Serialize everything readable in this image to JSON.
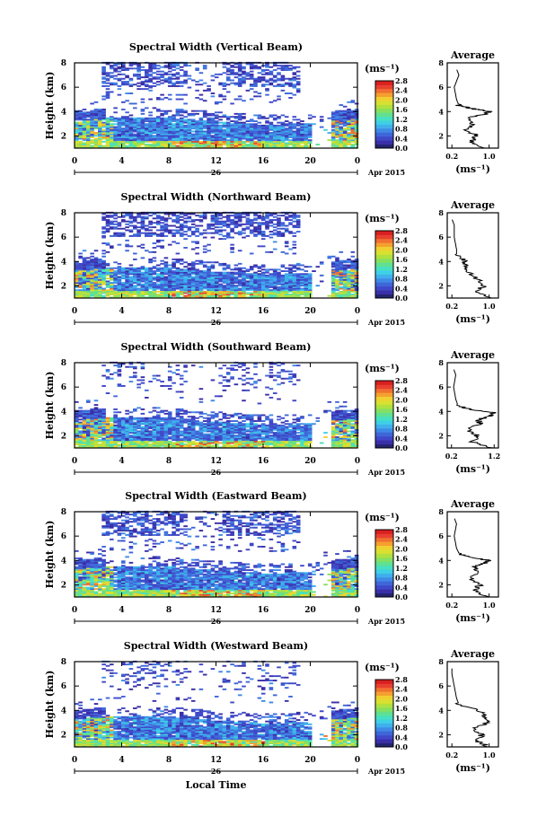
{
  "figure": {
    "x_axis_label": "Local Time",
    "date_label": "Apr 2015",
    "day_label": "26",
    "colorbar_units": "(ms⁻¹)",
    "average_title": "Average",
    "average_units": "(ms⁻¹)",
    "colorscale": [
      "#242470",
      "#3a2fa8",
      "#3f48c8",
      "#3f66d8",
      "#3f8ae6",
      "#3fb0ec",
      "#3fd0e6",
      "#47e0c0",
      "#60e090",
      "#86e060",
      "#b0e040",
      "#d8e030",
      "#f0d030",
      "#f4a030",
      "#f07030",
      "#e84030",
      "#d82020"
    ]
  },
  "chart_data": [
    {
      "type": "heatmap",
      "title": "Spectral Width (Vertical Beam)",
      "ylabel": "Height (km)",
      "x_ticks": [
        "0",
        "4",
        "8",
        "12",
        "16",
        "20",
        "0"
      ],
      "y_ticks": [
        "2",
        "4",
        "6",
        "8"
      ],
      "xlim": [
        0,
        24
      ],
      "ylim": [
        1,
        8
      ],
      "colorbar_ticks": [
        "0.0",
        "0.4",
        "0.8",
        "1.2",
        "1.6",
        "2.0",
        "2.4",
        "2.8"
      ],
      "colorbar_range": [
        0,
        2.8
      ],
      "average": {
        "x_ticks": [
          "0.2",
          "1.0"
        ],
        "xlim": [
          0.1,
          1.2
        ],
        "y_ticks": [
          "2",
          "4",
          "6",
          "8"
        ],
        "height_km": [
          1.0,
          1.5,
          2.0,
          2.5,
          3.0,
          3.5,
          3.8,
          4.0,
          4.2,
          4.5,
          5.0,
          6.0,
          7.0,
          7.5
        ],
        "width_ms": [
          0.95,
          0.6,
          0.75,
          0.5,
          0.65,
          0.55,
          0.9,
          1.0,
          0.7,
          0.35,
          0.3,
          0.25,
          0.35,
          0.3
        ]
      }
    },
    {
      "type": "heatmap",
      "title": "Spectral Width (Northward Beam)",
      "ylabel": "Height (km)",
      "x_ticks": [
        "0",
        "4",
        "8",
        "12",
        "16",
        "20",
        "0"
      ],
      "y_ticks": [
        "2",
        "4",
        "6",
        "8"
      ],
      "xlim": [
        0,
        24
      ],
      "ylim": [
        1,
        8
      ],
      "colorbar_ticks": [
        "0.0",
        "0.4",
        "0.8",
        "1.2",
        "1.6",
        "2.0",
        "2.4",
        "2.8"
      ],
      "colorbar_range": [
        0,
        2.8
      ],
      "average": {
        "x_ticks": [
          "0.2",
          "1.0"
        ],
        "xlim": [
          0.1,
          1.2
        ],
        "y_ticks": [
          "2",
          "4",
          "6",
          "8"
        ],
        "height_km": [
          1.0,
          1.5,
          2.0,
          2.5,
          3.0,
          3.5,
          4.0,
          4.5,
          5.0,
          6.0,
          7.0,
          7.5
        ],
        "width_ms": [
          1.0,
          0.7,
          0.9,
          0.75,
          0.6,
          0.45,
          0.5,
          0.3,
          0.3,
          0.25,
          0.25,
          0.2
        ]
      }
    },
    {
      "type": "heatmap",
      "title": "Spectral Width (Southward Beam)",
      "ylabel": "Height (km)",
      "x_ticks": [
        "0",
        "4",
        "8",
        "12",
        "16",
        "20",
        "0"
      ],
      "y_ticks": [
        "2",
        "4",
        "6",
        "8"
      ],
      "xlim": [
        0,
        24
      ],
      "ylim": [
        1,
        8
      ],
      "colorbar_ticks": [
        "0.0",
        "0.4",
        "0.8",
        "1.2",
        "1.6",
        "2.0",
        "2.4",
        "2.8"
      ],
      "colorbar_range": [
        0,
        2.8
      ],
      "average": {
        "x_ticks": [
          "0.2",
          "1.2"
        ],
        "xlim": [
          0.1,
          1.3
        ],
        "y_ticks": [
          "2",
          "4",
          "6",
          "8"
        ],
        "height_km": [
          1.0,
          1.5,
          2.0,
          2.5,
          3.0,
          3.3,
          3.6,
          3.9,
          4.2,
          4.5,
          5.0,
          6.0,
          7.0,
          7.5
        ],
        "width_ms": [
          1.1,
          0.7,
          0.8,
          0.6,
          0.9,
          0.8,
          1.1,
          1.2,
          0.6,
          0.35,
          0.3,
          0.25,
          0.3,
          0.25
        ]
      }
    },
    {
      "type": "heatmap",
      "title": "Spectral Width (Eastward Beam)",
      "ylabel": "Height (km)",
      "x_ticks": [
        "0",
        "4",
        "8",
        "12",
        "16",
        "20",
        "0"
      ],
      "y_ticks": [
        "2",
        "4",
        "6",
        "8"
      ],
      "xlim": [
        0,
        24
      ],
      "ylim": [
        1,
        8
      ],
      "colorbar_ticks": [
        "0.0",
        "0.4",
        "0.8",
        "1.2",
        "1.6",
        "2.0",
        "2.4",
        "2.8"
      ],
      "colorbar_range": [
        0,
        2.8
      ],
      "average": {
        "x_ticks": [
          "0.2",
          "1.0"
        ],
        "xlim": [
          0.1,
          1.2
        ],
        "y_ticks": [
          "2",
          "4",
          "6",
          "8"
        ],
        "height_km": [
          1.0,
          1.5,
          2.0,
          2.5,
          3.0,
          3.5,
          3.8,
          4.0,
          4.3,
          4.6,
          5.0,
          6.0,
          7.0,
          7.5
        ],
        "width_ms": [
          0.95,
          0.7,
          0.8,
          0.6,
          0.75,
          0.7,
          0.95,
          1.0,
          0.55,
          0.35,
          0.3,
          0.25,
          0.3,
          0.25
        ]
      }
    },
    {
      "type": "heatmap",
      "title": "Spectral Width (Westward Beam)",
      "ylabel": "Height (km)",
      "x_ticks": [
        "0",
        "4",
        "8",
        "12",
        "16",
        "20",
        "0"
      ],
      "y_ticks": [
        "2",
        "4",
        "6",
        "8"
      ],
      "xlim": [
        0,
        24
      ],
      "ylim": [
        1,
        8
      ],
      "colorbar_ticks": [
        "0.0",
        "0.4",
        "0.8",
        "1.2",
        "1.6",
        "2.0",
        "2.4",
        "2.8"
      ],
      "colorbar_range": [
        0,
        2.8
      ],
      "average": {
        "x_ticks": [
          "0.2",
          "1.0"
        ],
        "xlim": [
          0.1,
          1.2
        ],
        "y_ticks": [
          "2",
          "4",
          "6",
          "8"
        ],
        "height_km": [
          1.0,
          1.5,
          2.0,
          2.5,
          3.0,
          3.5,
          4.0,
          4.5,
          5.0,
          6.0,
          7.0,
          7.5
        ],
        "width_ms": [
          1.0,
          0.75,
          0.85,
          0.7,
          0.95,
          0.9,
          0.8,
          0.35,
          0.3,
          0.25,
          0.2,
          0.2
        ]
      }
    }
  ]
}
